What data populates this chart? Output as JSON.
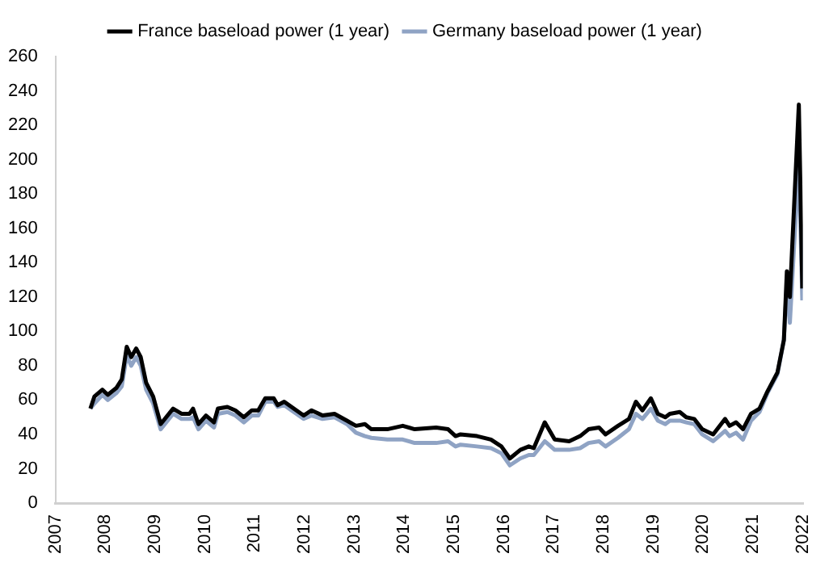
{
  "chart_data": {
    "type": "line",
    "x": [
      2007.7,
      2007.78,
      2007.94,
      2008.05,
      2008.22,
      2008.33,
      2008.43,
      2008.52,
      2008.62,
      2008.71,
      2008.82,
      2008.96,
      2009.11,
      2009.36,
      2009.53,
      2009.69,
      2009.76,
      2009.87,
      2010.02,
      2010.18,
      2010.26,
      2010.45,
      2010.61,
      2010.78,
      2010.94,
      2011.07,
      2011.21,
      2011.38,
      2011.46,
      2011.59,
      2011.98,
      2012.14,
      2012.36,
      2012.6,
      2012.85,
      2013.03,
      2013.21,
      2013.34,
      2013.66,
      2013.97,
      2014.21,
      2014.64,
      2014.88,
      2015.03,
      2015.13,
      2015.46,
      2015.74,
      2015.95,
      2016.12,
      2016.33,
      2016.5,
      2016.6,
      2016.82,
      2017.02,
      2017.31,
      2017.53,
      2017.7,
      2017.91,
      2018.04,
      2018.29,
      2018.51,
      2018.65,
      2018.78,
      2018.95,
      2019.09,
      2019.24,
      2019.33,
      2019.53,
      2019.66,
      2019.82,
      2019.98,
      2020.2,
      2020.44,
      2020.53,
      2020.66,
      2020.8,
      2020.96,
      2021.13,
      2021.29,
      2021.49,
      2021.62,
      2021.68,
      2021.74,
      2021.92,
      2021.99
    ],
    "series": [
      {
        "name": "France baseload power (1 year)",
        "color": "#000000",
        "values": [
          55,
          62,
          66,
          63,
          67,
          72,
          91,
          85,
          90,
          85,
          70,
          62,
          46,
          55,
          52,
          52,
          55,
          46,
          51,
          47,
          55,
          56,
          54,
          50,
          54,
          54,
          61,
          61,
          57,
          59,
          51,
          54,
          51,
          52,
          48,
          45,
          46,
          43,
          43,
          45,
          43,
          44,
          43,
          39,
          40,
          39,
          37,
          33,
          26,
          31,
          33,
          32,
          47,
          37,
          36,
          39,
          43,
          44,
          40,
          45,
          49,
          59,
          54,
          61,
          52,
          50,
          52,
          53,
          50,
          49,
          43,
          40,
          49,
          45,
          47,
          43,
          52,
          55,
          65,
          76,
          95,
          135,
          120,
          232,
          125
        ]
      },
      {
        "name": "Germany baseload power (1 year)",
        "color": "#8fa3c4",
        "values": [
          55,
          58,
          63,
          60,
          64,
          68,
          86,
          80,
          85,
          80,
          66,
          58,
          43,
          52,
          49,
          49,
          50,
          43,
          48,
          44,
          52,
          53,
          51,
          47,
          51,
          51,
          59,
          59,
          56,
          57,
          49,
          51,
          49,
          50,
          46,
          41,
          39,
          38,
          37,
          37,
          35,
          35,
          36,
          33,
          34,
          33,
          32,
          29,
          22,
          26,
          28,
          28,
          36,
          31,
          31,
          32,
          35,
          36,
          33,
          38,
          43,
          52,
          49,
          55,
          48,
          46,
          48,
          48,
          47,
          46,
          40,
          36,
          42,
          39,
          41,
          37,
          48,
          53,
          64,
          75,
          95,
          128,
          105,
          200,
          118
        ]
      }
    ],
    "xlim": [
      2007,
      2022
    ],
    "xticks": [
      2007,
      2008,
      2009,
      2010,
      2011,
      2012,
      2013,
      2014,
      2015,
      2016,
      2017,
      2018,
      2019,
      2020,
      2021,
      2022
    ],
    "ylim": [
      0,
      260
    ],
    "yticks": [
      0,
      20,
      40,
      60,
      80,
      100,
      120,
      140,
      160,
      180,
      200,
      220,
      240,
      260
    ],
    "grid": false,
    "legend": "top",
    "marker": "none",
    "line_style": "solid"
  }
}
